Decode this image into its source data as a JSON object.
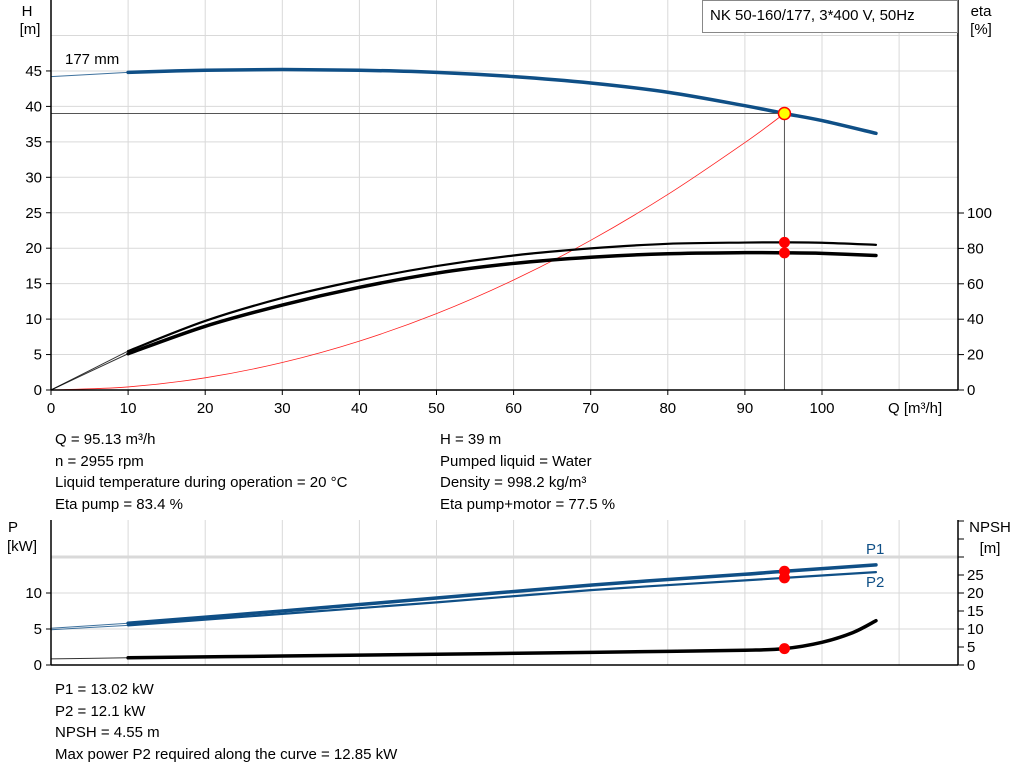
{
  "chart_data": [
    {
      "type": "line",
      "title": "NK 50-160/177, 3*400 V, 50Hz",
      "xlabel": "Q [m³/h]",
      "ylabel_left": {
        "name": "H",
        "unit": "[m]"
      },
      "ylabel_right": {
        "name": "eta",
        "unit": "[%]"
      },
      "xlim": [
        0,
        110
      ],
      "ylim_left": [
        0,
        50
      ],
      "ylim_right": [
        0,
        100
      ],
      "x_ticks": [
        "0",
        "10",
        "20",
        "30",
        "40",
        "50",
        "60",
        "70",
        "80",
        "90",
        "100"
      ],
      "y_ticks_left": [
        "0",
        "5",
        "10",
        "15",
        "20",
        "25",
        "30",
        "35",
        "40",
        "45"
      ],
      "y_ticks_right": [
        "0",
        "20",
        "40",
        "60",
        "80",
        "100"
      ],
      "grid": true,
      "impeller_label": "177 mm",
      "series": [
        {
          "id": "head",
          "axis": "left",
          "color": "#0f4f86",
          "x": [
            0,
            10,
            20,
            30,
            40,
            50,
            60,
            70,
            80,
            90,
            95.13,
            100,
            107
          ],
          "y": [
            44.2,
            44.8,
            45.1,
            45.2,
            45.1,
            44.8,
            44.2,
            43.3,
            42.0,
            40.1,
            39.0,
            38.0,
            36.2
          ]
        },
        {
          "id": "eta-pump",
          "axis": "right",
          "color": "#000000",
          "x": [
            0,
            10,
            20,
            30,
            40,
            50,
            60,
            70,
            80,
            90,
            95.13,
            100,
            107
          ],
          "y": [
            0,
            22,
            39,
            52,
            62,
            70,
            76,
            80,
            82.6,
            83.3,
            83.4,
            83.2,
            82
          ]
        },
        {
          "id": "eta-pump-motor",
          "axis": "right",
          "color": "#000000",
          "x": [
            0,
            10,
            20,
            30,
            40,
            50,
            60,
            70,
            80,
            90,
            95.13,
            100,
            107
          ],
          "y": [
            0,
            20.5,
            36,
            48,
            58,
            66,
            71.5,
            75,
            77,
            77.6,
            77.5,
            77.2,
            76
          ]
        },
        {
          "id": "system-curve",
          "axis": "left",
          "color": "#ff2020",
          "x": [
            0,
            10,
            20,
            30,
            40,
            50,
            60,
            70,
            80,
            90,
            95.13
          ],
          "y": [
            0,
            0.43,
            1.72,
            3.88,
            6.9,
            10.77,
            15.51,
            21.11,
            27.58,
            34.9,
            39.0
          ]
        }
      ],
      "duty_point": {
        "Q": 95.13,
        "H": 39,
        "eta_pump": 83.4,
        "eta_pump_motor": 77.5
      }
    },
    {
      "type": "line",
      "xlim": [
        0,
        110
      ],
      "ylabel_left": {
        "name": "P",
        "unit": "[kW]"
      },
      "ylabel_right": {
        "name": "NPSH",
        "unit": "[m]"
      },
      "ylim_left": [
        0,
        20
      ],
      "ylim_right": [
        0,
        40
      ],
      "y_ticks_left": [
        "0",
        "5",
        "10"
      ],
      "y_ticks_right": [
        "0",
        "5",
        "10",
        "15",
        "20",
        "25"
      ],
      "series": [
        {
          "id": "P1",
          "name": "P1",
          "axis": "left",
          "color": "#0f4f86",
          "x": [
            0,
            10,
            30,
            50,
            70,
            90,
            95.13,
            107
          ],
          "y": [
            5.1,
            5.8,
            7.5,
            9.3,
            11.1,
            12.6,
            13.02,
            13.9
          ]
        },
        {
          "id": "P2",
          "name": "P2",
          "axis": "left",
          "color": "#0f4f86",
          "x": [
            0,
            10,
            30,
            50,
            70,
            90,
            95.13,
            107
          ],
          "y": [
            4.9,
            5.5,
            7.1,
            8.7,
            10.4,
            11.75,
            12.1,
            12.9
          ]
        },
        {
          "id": "NPSH",
          "axis": "right",
          "color": "#000000",
          "x": [
            0,
            10,
            30,
            50,
            70,
            80,
            90,
            95.13,
            100,
            104,
            107
          ],
          "y": [
            1.7,
            2.0,
            2.5,
            3.0,
            3.5,
            3.8,
            4.1,
            4.55,
            6.3,
            9.0,
            12.3
          ]
        }
      ],
      "duty_point": {
        "Q": 95.13,
        "P1": 13.02,
        "P2": 12.1,
        "NPSH": 4.55
      }
    }
  ],
  "info_top": {
    "left": [
      "Q = 95.13 m³/h",
      "n = 2955 rpm",
      "Liquid temperature during operation = 20 °C",
      "Eta pump = 83.4 %"
    ],
    "right": [
      "H = 39 m",
      "Pumped liquid = Water",
      "Density = 998.2 kg/m³",
      "Eta pump+motor = 77.5 %"
    ]
  },
  "info_bottom": [
    "P1 = 13.02 kW",
    "P2 = 12.1 kW",
    "NPSH = 4.55 m",
    "Max power P2 required along the curve = 12.85 kW"
  ],
  "colors": {
    "head": "#0f4f86",
    "power": "#0f4f86",
    "duty_marker": "#ff0000",
    "duty_fill": "#ffff00",
    "system": "#ff2020",
    "grid": "#d9d9d9"
  }
}
